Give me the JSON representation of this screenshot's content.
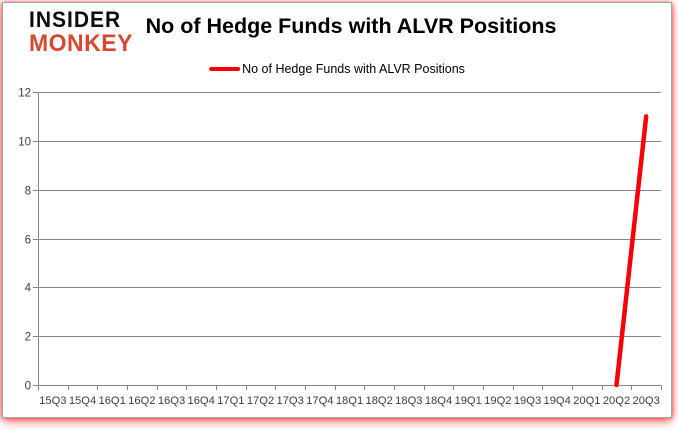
{
  "logo": {
    "line1": "INSIDER",
    "line2": "MONKEY"
  },
  "header": {
    "title": "No of Hedge Funds with ALVR Positions"
  },
  "legend": {
    "label": "No of Hedge Funds with ALVR Positions"
  },
  "colors": {
    "line": "#f70000",
    "grid": "#878787",
    "axis": "#878787",
    "tick_label": "#3d3d3d",
    "logo_black": "#0d0d0d",
    "logo_red": "#d4492f",
    "frame_border": "#a6a6a6"
  },
  "chart_data": {
    "type": "line",
    "title": "No of Hedge Funds with ALVR Positions",
    "xlabel": "",
    "ylabel": "",
    "categories": [
      "15Q3",
      "15Q4",
      "16Q1",
      "16Q2",
      "16Q3",
      "16Q4",
      "17Q1",
      "17Q2",
      "17Q3",
      "17Q4",
      "18Q1",
      "18Q2",
      "18Q3",
      "18Q4",
      "19Q1",
      "19Q2",
      "19Q3",
      "19Q4",
      "20Q1",
      "20Q2",
      "20Q3"
    ],
    "series": [
      {
        "name": "No of Hedge Funds with ALVR Positions",
        "color": "#f70000",
        "values": [
          null,
          null,
          null,
          null,
          null,
          null,
          null,
          null,
          null,
          null,
          null,
          null,
          null,
          null,
          null,
          null,
          null,
          null,
          null,
          0,
          11
        ]
      }
    ],
    "ylim": [
      0,
      12
    ],
    "y_ticks": [
      0,
      2,
      4,
      6,
      8,
      10,
      12
    ],
    "grid": true,
    "legend_position": "top-center"
  }
}
